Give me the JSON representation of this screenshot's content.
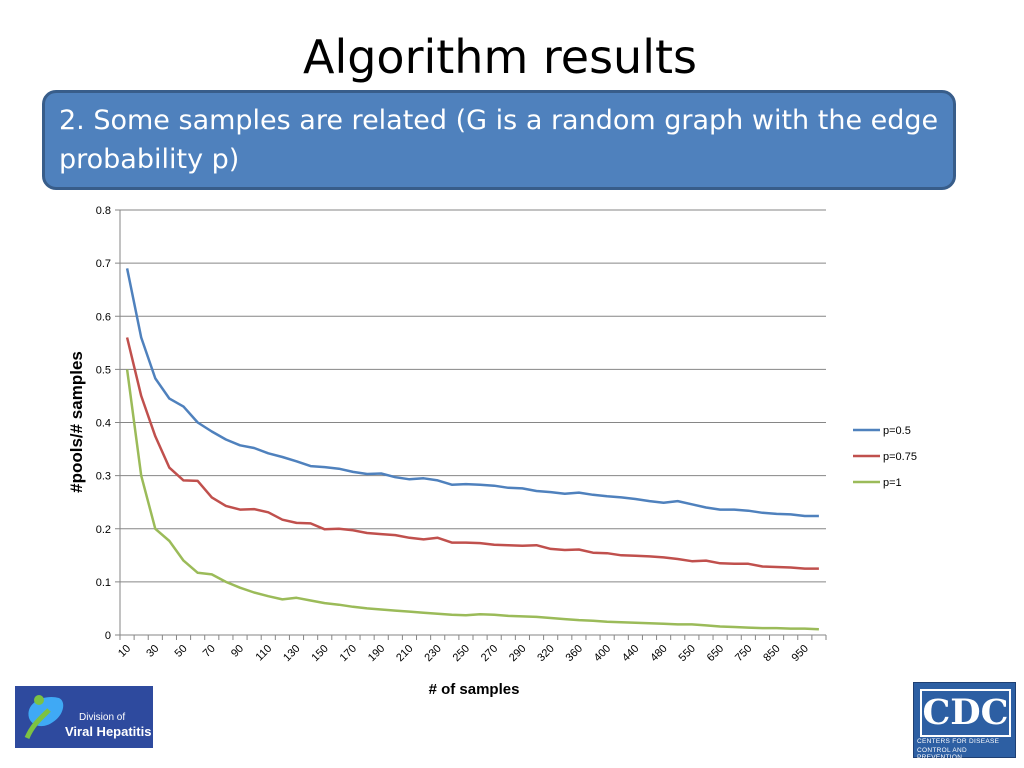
{
  "slide": {
    "title": "Algorithm results",
    "callout": "2. Some samples are related (G is a random graph with the edge probability p)"
  },
  "logos": {
    "left": {
      "line1": "Division of",
      "line2": "Viral Hepatitis"
    },
    "right": {
      "mark": "CDC",
      "line1": "CENTERS FOR DISEASE",
      "line2": "CONTROL AND PREVENTION"
    }
  },
  "colors": {
    "p05": "#4f81bd",
    "p075": "#c0504d",
    "p1": "#9bbb59",
    "callout_bg": "#4f81bd"
  },
  "chart_data": {
    "type": "line",
    "title": "",
    "xlabel": "# of samples",
    "ylabel": "#pools/# samples",
    "ylim": [
      0,
      0.8
    ],
    "yticks": [
      "0",
      "0.1",
      "0.2",
      "0.3",
      "0.4",
      "0.5",
      "0.6",
      "0.7",
      "0.8"
    ],
    "grid": true,
    "legend": "right",
    "categories": [
      10,
      20,
      30,
      40,
      50,
      60,
      70,
      80,
      90,
      100,
      110,
      120,
      130,
      140,
      150,
      160,
      170,
      180,
      190,
      200,
      210,
      220,
      230,
      240,
      250,
      260,
      270,
      280,
      290,
      300,
      320,
      340,
      360,
      380,
      400,
      420,
      440,
      460,
      480,
      500,
      550,
      600,
      650,
      700,
      750,
      800,
      850,
      900,
      950,
      1000
    ],
    "xticklabels": [
      "10",
      "30",
      "50",
      "70",
      "90",
      "110",
      "130",
      "150",
      "170",
      "190",
      "210",
      "230",
      "250",
      "270",
      "290",
      "320",
      "360",
      "400",
      "440",
      "480",
      "550",
      "650",
      "750",
      "850",
      "950"
    ],
    "series": [
      {
        "name": "p=0.5",
        "color": "#4f81bd",
        "values": [
          0.69,
          0.56,
          0.483,
          0.445,
          0.43,
          0.4,
          0.383,
          0.368,
          0.357,
          0.352,
          0.342,
          0.335,
          0.327,
          0.318,
          0.316,
          0.313,
          0.307,
          0.303,
          0.304,
          0.297,
          0.293,
          0.295,
          0.291,
          0.283,
          0.284,
          0.283,
          0.281,
          0.277,
          0.276,
          0.271,
          0.269,
          0.266,
          0.268,
          0.264,
          0.261,
          0.259,
          0.256,
          0.252,
          0.249,
          0.252,
          0.246,
          0.24,
          0.236,
          0.236,
          0.234,
          0.23,
          0.228,
          0.227,
          0.224,
          0.224
        ]
      },
      {
        "name": "p=0.75",
        "color": "#c0504d",
        "values": [
          0.56,
          0.45,
          0.374,
          0.315,
          0.291,
          0.29,
          0.259,
          0.243,
          0.236,
          0.237,
          0.231,
          0.217,
          0.211,
          0.21,
          0.199,
          0.2,
          0.197,
          0.192,
          0.19,
          0.188,
          0.183,
          0.18,
          0.183,
          0.174,
          0.174,
          0.173,
          0.17,
          0.169,
          0.168,
          0.169,
          0.162,
          0.16,
          0.161,
          0.155,
          0.154,
          0.15,
          0.149,
          0.148,
          0.146,
          0.143,
          0.139,
          0.14,
          0.135,
          0.134,
          0.134,
          0.129,
          0.128,
          0.127,
          0.125,
          0.125
        ]
      },
      {
        "name": "p=1",
        "color": "#9bbb59",
        "values": [
          0.5,
          0.3,
          0.2,
          0.177,
          0.14,
          0.117,
          0.114,
          0.1,
          0.089,
          0.08,
          0.073,
          0.067,
          0.07,
          0.065,
          0.06,
          0.057,
          0.053,
          0.05,
          0.048,
          0.046,
          0.044,
          0.042,
          0.04,
          0.038,
          0.037,
          0.039,
          0.038,
          0.036,
          0.035,
          0.034,
          0.032,
          0.03,
          0.028,
          0.027,
          0.025,
          0.024,
          0.023,
          0.022,
          0.021,
          0.02,
          0.02,
          0.018,
          0.016,
          0.015,
          0.014,
          0.013,
          0.013,
          0.012,
          0.012,
          0.011
        ]
      }
    ]
  }
}
